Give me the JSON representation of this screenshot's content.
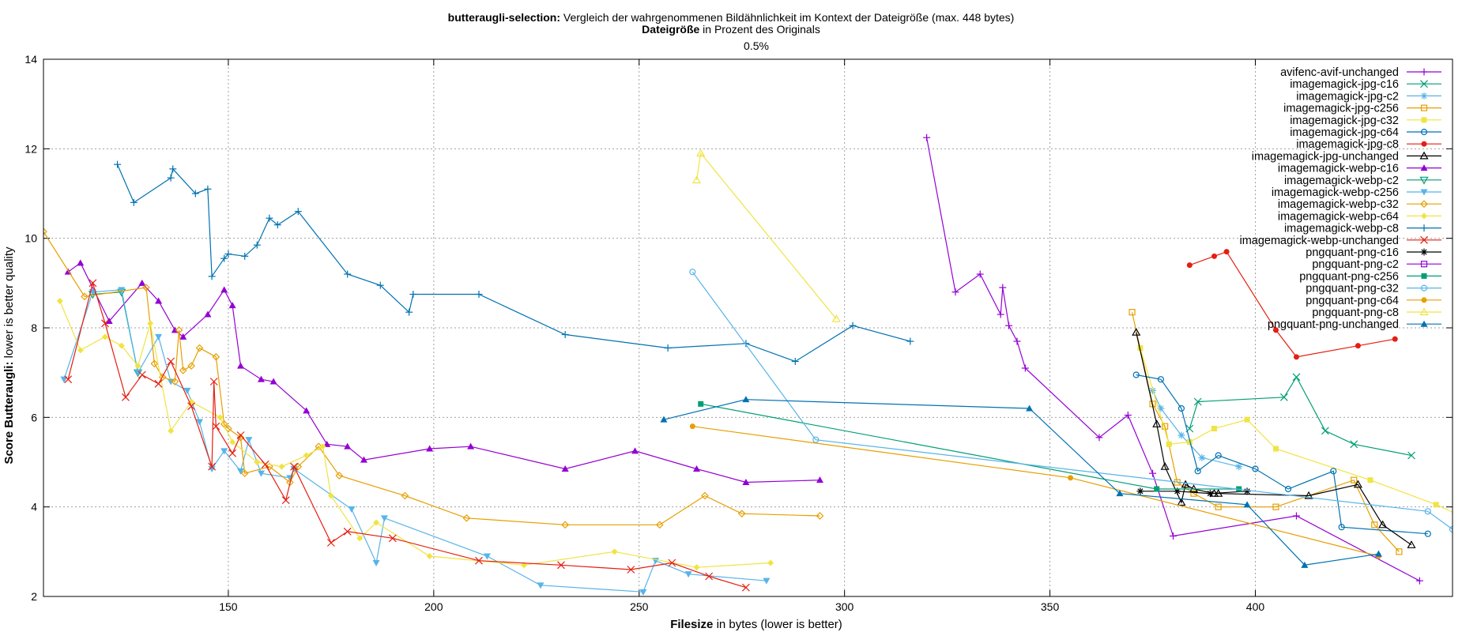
{
  "header": {
    "title_bold": "butteraugli-selection:",
    "title_rest": " Vergleich der wahrgenommenen Bildähnlichkeit im Kontext der Dateigröße (max. 448 bytes)",
    "sub_bold": "Dateigröße",
    "sub_rest": " in Prozent des Originals",
    "percent": "0.5%"
  },
  "axes": {
    "xlabel_bold": "Filesize",
    "xlabel_rest": " in bytes (lower is better)",
    "ylabel_bold": "Score Butteraugli:",
    "ylabel_rest": " lower is better quality"
  },
  "chart_data": {
    "type": "line",
    "xlim": [
      105,
      448
    ],
    "ylim": [
      2,
      14
    ],
    "xticks": [
      150,
      200,
      250,
      300,
      350,
      400
    ],
    "yticks": [
      2,
      4,
      6,
      8,
      10,
      12,
      14
    ],
    "grid": true,
    "legend_position": "top-right",
    "series": [
      {
        "name": "avifenc-avif-unchanged",
        "color": "#9400d3",
        "marker": "plus",
        "points": [
          [
            320,
            12.25
          ],
          [
            327,
            8.8
          ],
          [
            333,
            9.2
          ],
          [
            338,
            8.3
          ],
          [
            338.5,
            8.9
          ],
          [
            340,
            8.05
          ],
          [
            342,
            7.7
          ],
          [
            344,
            7.1
          ],
          [
            362,
            5.55
          ],
          [
            369,
            6.05
          ],
          [
            375,
            4.75
          ],
          [
            380,
            3.35
          ],
          [
            410,
            3.8
          ],
          [
            440,
            2.35
          ]
        ]
      },
      {
        "name": "imagemagick-jpg-c16",
        "color": "#009e73",
        "marker": "x",
        "points": [
          [
            384,
            5.75
          ],
          [
            386,
            6.35
          ],
          [
            407,
            6.45
          ],
          [
            410,
            6.9
          ],
          [
            417,
            5.7
          ],
          [
            424,
            5.4
          ],
          [
            438,
            5.15
          ]
        ]
      },
      {
        "name": "imagemagick-jpg-c2",
        "color": "#56b4e9",
        "marker": "star",
        "points": [
          [
            375,
            6.6
          ],
          [
            377,
            6.2
          ],
          [
            382,
            5.6
          ],
          [
            387,
            5.1
          ],
          [
            396,
            4.9
          ]
        ]
      },
      {
        "name": "imagemagick-jpg-c256",
        "color": "#e69f00",
        "marker": "box",
        "points": [
          [
            370,
            8.35
          ],
          [
            375,
            6.3
          ],
          [
            378,
            5.8
          ],
          [
            381,
            4.55
          ],
          [
            385,
            4.3
          ],
          [
            391,
            4.0
          ],
          [
            405,
            4.0
          ],
          [
            424,
            4.6
          ],
          [
            429,
            3.6
          ],
          [
            435,
            3.0
          ]
        ]
      },
      {
        "name": "imagemagick-jpg-c32",
        "color": "#f0e442",
        "marker": "fbox",
        "points": [
          [
            372,
            7.55
          ],
          [
            379,
            5.4
          ],
          [
            384,
            5.45
          ],
          [
            390,
            5.75
          ],
          [
            398,
            5.95
          ],
          [
            405,
            5.3
          ],
          [
            428,
            4.6
          ],
          [
            444,
            4.05
          ],
          [
            450,
            3.8
          ]
        ]
      },
      {
        "name": "imagemagick-jpg-c64",
        "color": "#0072b2",
        "marker": "circle",
        "points": [
          [
            371,
            6.95
          ],
          [
            377,
            6.85
          ],
          [
            382,
            6.2
          ],
          [
            386,
            4.8
          ],
          [
            391,
            5.15
          ],
          [
            400,
            4.85
          ],
          [
            408,
            4.4
          ],
          [
            419,
            4.8
          ],
          [
            421,
            3.55
          ],
          [
            442,
            3.4
          ]
        ]
      },
      {
        "name": "imagemagick-jpg-c8",
        "color": "#e51e10",
        "marker": "fcircle",
        "points": [
          [
            384,
            9.4
          ],
          [
            390,
            9.6
          ],
          [
            393,
            9.7
          ],
          [
            405,
            7.95
          ],
          [
            410,
            7.35
          ],
          [
            425,
            7.6
          ],
          [
            434,
            7.75
          ]
        ]
      },
      {
        "name": "imagemagick-jpg-unchanged",
        "color": "#000000",
        "marker": "triangle",
        "points": [
          [
            371,
            7.9
          ],
          [
            376,
            5.85
          ],
          [
            378,
            4.9
          ],
          [
            382,
            4.1
          ],
          [
            383,
            4.5
          ],
          [
            385,
            4.4
          ],
          [
            390,
            4.3
          ],
          [
            391,
            4.3
          ],
          [
            413,
            4.25
          ],
          [
            425,
            4.5
          ],
          [
            431,
            3.6
          ],
          [
            438,
            3.15
          ]
        ]
      },
      {
        "name": "imagemagick-webp-c16",
        "color": "#9400d3",
        "marker": "ftriangle",
        "points": [
          [
            111,
            9.25
          ],
          [
            114,
            9.45
          ],
          [
            121,
            8.15
          ],
          [
            129,
            9.0
          ],
          [
            133,
            8.6
          ],
          [
            137,
            7.95
          ],
          [
            139,
            7.8
          ],
          [
            145,
            8.3
          ],
          [
            149,
            8.85
          ],
          [
            151,
            8.5
          ],
          [
            153,
            7.15
          ],
          [
            158,
            6.85
          ],
          [
            161,
            6.8
          ],
          [
            169,
            6.15
          ],
          [
            174,
            5.4
          ],
          [
            179,
            5.35
          ],
          [
            183,
            5.05
          ],
          [
            199,
            5.3
          ],
          [
            209,
            5.35
          ],
          [
            232,
            4.85
          ],
          [
            249,
            5.25
          ],
          [
            264,
            4.85
          ],
          [
            276,
            4.55
          ],
          [
            294,
            4.6
          ]
        ]
      },
      {
        "name": "imagemagick-webp-c2",
        "color": "#009e73",
        "marker": "dtriangle",
        "points": [
          [
            117,
            8.75
          ],
          [
            124,
            8.8
          ],
          [
            128,
            7.0
          ]
        ]
      },
      {
        "name": "imagemagick-webp-c256",
        "color": "#56b4e9",
        "marker": "fdtriangle",
        "points": [
          [
            110,
            6.85
          ],
          [
            117,
            8.8
          ],
          [
            124,
            8.85
          ],
          [
            128,
            7.0
          ],
          [
            133,
            7.8
          ],
          [
            136,
            6.8
          ],
          [
            140,
            6.6
          ],
          [
            143,
            5.9
          ],
          [
            146,
            4.85
          ],
          [
            149,
            5.25
          ],
          [
            153,
            4.8
          ],
          [
            155,
            5.5
          ],
          [
            158,
            4.75
          ],
          [
            165,
            4.65
          ],
          [
            166,
            4.85
          ],
          [
            180,
            3.95
          ],
          [
            186,
            2.75
          ],
          [
            188,
            3.75
          ],
          [
            213,
            2.9
          ],
          [
            226,
            2.25
          ],
          [
            251,
            2.1
          ],
          [
            254,
            2.8
          ],
          [
            262,
            2.5
          ],
          [
            281,
            2.35
          ]
        ]
      },
      {
        "name": "imagemagick-webp-c32",
        "color": "#e69f00",
        "marker": "diamond",
        "points": [
          [
            105,
            10.15
          ],
          [
            115,
            8.7
          ],
          [
            130,
            8.9
          ],
          [
            132,
            7.2
          ],
          [
            134,
            6.9
          ],
          [
            137,
            6.8
          ],
          [
            138,
            7.95
          ],
          [
            139,
            7.05
          ],
          [
            141,
            7.15
          ],
          [
            143,
            7.55
          ],
          [
            147,
            7.35
          ],
          [
            149,
            5.85
          ],
          [
            150,
            5.75
          ],
          [
            153,
            5.55
          ],
          [
            154,
            4.75
          ],
          [
            160,
            4.9
          ],
          [
            165,
            4.55
          ],
          [
            167,
            4.9
          ],
          [
            172,
            5.35
          ],
          [
            177,
            4.7
          ],
          [
            193,
            4.25
          ],
          [
            208,
            3.75
          ],
          [
            232,
            3.6
          ],
          [
            255,
            3.6
          ],
          [
            266,
            4.25
          ],
          [
            275,
            3.85
          ],
          [
            294,
            3.8
          ]
        ]
      },
      {
        "name": "imagemagick-webp-c64",
        "color": "#f0e442",
        "marker": "fdiamond",
        "points": [
          [
            109,
            8.6
          ],
          [
            114,
            7.5
          ],
          [
            120,
            7.8
          ],
          [
            124,
            7.6
          ],
          [
            128,
            7.15
          ],
          [
            131,
            8.1
          ],
          [
            136,
            5.7
          ],
          [
            141,
            6.35
          ],
          [
            148,
            6.0
          ],
          [
            151,
            5.45
          ],
          [
            157,
            5.0
          ],
          [
            163,
            4.9
          ],
          [
            169,
            5.15
          ],
          [
            173,
            5.35
          ],
          [
            175,
            4.25
          ],
          [
            182,
            3.3
          ],
          [
            186,
            3.65
          ],
          [
            199,
            2.9
          ],
          [
            222,
            2.7
          ],
          [
            244,
            3.0
          ],
          [
            264,
            2.65
          ],
          [
            282,
            2.75
          ]
        ]
      },
      {
        "name": "imagemagick-webp-c8",
        "color": "#0072b2",
        "marker": "plus",
        "points": [
          [
            123,
            11.65
          ],
          [
            127,
            10.8
          ],
          [
            136,
            11.35
          ],
          [
            136.5,
            11.55
          ],
          [
            142,
            11.0
          ],
          [
            145,
            11.1
          ],
          [
            146,
            9.15
          ],
          [
            149,
            9.55
          ],
          [
            150,
            9.65
          ],
          [
            154,
            9.6
          ],
          [
            157,
            9.85
          ],
          [
            160,
            10.45
          ],
          [
            162,
            10.3
          ],
          [
            167,
            10.6
          ],
          [
            179,
            9.2
          ],
          [
            187,
            8.95
          ],
          [
            194,
            8.35
          ],
          [
            195,
            8.75
          ],
          [
            211,
            8.75
          ],
          [
            232,
            7.85
          ],
          [
            257,
            7.55
          ],
          [
            276,
            7.65
          ],
          [
            288,
            7.25
          ],
          [
            302,
            8.05
          ],
          [
            316,
            7.7
          ]
        ]
      },
      {
        "name": "imagemagick-webp-unchanged",
        "color": "#e51e10",
        "marker": "x",
        "points": [
          [
            111,
            6.85
          ],
          [
            117,
            9.0
          ],
          [
            120,
            8.1
          ],
          [
            125,
            6.45
          ],
          [
            129,
            6.95
          ],
          [
            133,
            6.75
          ],
          [
            136,
            7.25
          ],
          [
            141,
            6.25
          ],
          [
            146,
            4.9
          ],
          [
            146.5,
            6.8
          ],
          [
            147,
            5.8
          ],
          [
            151,
            5.2
          ],
          [
            153,
            5.6
          ],
          [
            159,
            4.95
          ],
          [
            164,
            4.15
          ],
          [
            166,
            4.9
          ],
          [
            175,
            3.2
          ],
          [
            179,
            3.45
          ],
          [
            190,
            3.3
          ],
          [
            211,
            2.8
          ],
          [
            231,
            2.7
          ],
          [
            248,
            2.6
          ],
          [
            258,
            2.75
          ],
          [
            267,
            2.45
          ],
          [
            276,
            2.2
          ]
        ]
      },
      {
        "name": "pngquant-png-c16",
        "color": "#000000",
        "marker": "star",
        "points": [
          [
            372,
            4.35
          ],
          [
            381,
            4.35
          ],
          [
            389,
            4.3
          ],
          [
            398,
            4.35
          ]
        ]
      },
      {
        "name": "pngquant-png-c2",
        "color": "#9400d3",
        "marker": "box",
        "points": []
      },
      {
        "name": "pngquant-png-c256",
        "color": "#009e73",
        "marker": "fbox",
        "points": [
          [
            265,
            6.3
          ],
          [
            376,
            4.4
          ],
          [
            396,
            4.4
          ]
        ]
      },
      {
        "name": "pngquant-png-c32",
        "color": "#56b4e9",
        "marker": "circle",
        "points": [
          [
            263,
            9.25
          ],
          [
            293,
            5.5
          ],
          [
            442,
            3.9
          ],
          [
            448,
            3.5
          ]
        ]
      },
      {
        "name": "pngquant-png-c64",
        "color": "#e69f00",
        "marker": "fcircle",
        "points": [
          [
            263,
            5.8
          ],
          [
            355,
            4.65
          ],
          [
            430,
            2.9
          ]
        ]
      },
      {
        "name": "pngquant-png-c8",
        "color": "#f0e442",
        "marker": "triangle",
        "points": [
          [
            264,
            11.3
          ],
          [
            265,
            11.9
          ],
          [
            298,
            8.2
          ]
        ]
      },
      {
        "name": "pngquant-png-unchanged",
        "color": "#0072b2",
        "marker": "ftriangle",
        "points": [
          [
            256,
            5.95
          ],
          [
            276,
            6.4
          ],
          [
            345,
            6.2
          ],
          [
            367,
            4.3
          ],
          [
            398,
            4.05
          ],
          [
            412,
            2.7
          ],
          [
            430,
            2.95
          ]
        ]
      }
    ]
  }
}
